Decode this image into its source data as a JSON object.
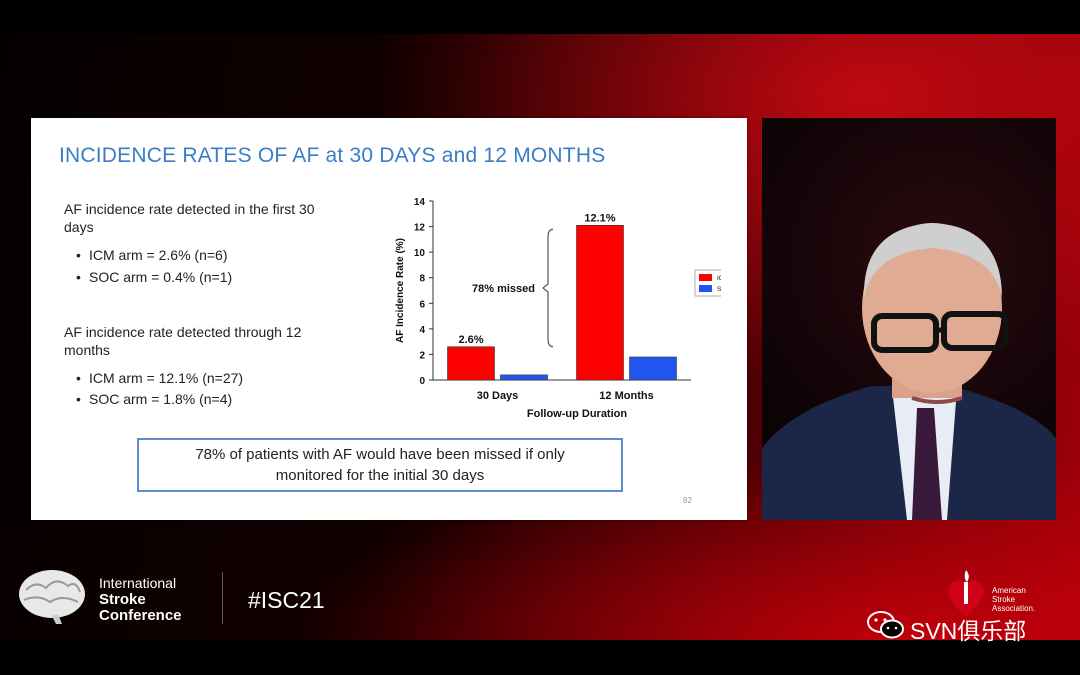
{
  "slide": {
    "title": "INCIDENCE RATES OF AF at 30 DAYS and 12 MONTHS",
    "section1": {
      "heading": "AF incidence rate detected in the first 30 days",
      "bullets": [
        "ICM arm = 2.6% (n=6)",
        "SOC arm = 0.4% (n=1)"
      ]
    },
    "section2": {
      "heading": "AF incidence rate detected through 12 months",
      "bullets": [
        "ICM arm = 12.1% (n=27)",
        "SOC arm = 1.8% (n=4)"
      ]
    },
    "callout": "78% of patients with AF would have been missed if only monitored for the initial 30 days",
    "page_number": "82"
  },
  "chart_data": {
    "type": "bar",
    "categories": [
      "30 Days",
      "12 Months"
    ],
    "series": [
      {
        "name": "ICM",
        "values": [
          2.6,
          12.1
        ],
        "color": "#ff0000"
      },
      {
        "name": "SOC",
        "values": [
          0.4,
          1.8
        ],
        "color": "#2255ee"
      }
    ],
    "data_labels": [
      "2.6%",
      "12.1%"
    ],
    "annotation": "78% missed",
    "xlabel": "Follow-up Duration",
    "ylabel": "AF Incidence Rate (%)",
    "ylim": [
      0,
      14
    ],
    "yticks": [
      0,
      2,
      4,
      6,
      8,
      10,
      12,
      14
    ],
    "legend_position": "right",
    "grid": false
  },
  "branding": {
    "conference_line1": "International",
    "conference_line2": "Stroke",
    "conference_line3": "Conference",
    "hashtag": "#ISC21",
    "aha_line1": "American",
    "aha_line2": "Stroke",
    "aha_line3": "Association.",
    "watermark": "SVN俱乐部"
  },
  "icons": [
    "brain-logo-icon",
    "aha-heart-torch-icon",
    "wechat-icon"
  ],
  "colors": {
    "accent_red": "#c8000c",
    "title_blue": "#3b7dc4"
  }
}
